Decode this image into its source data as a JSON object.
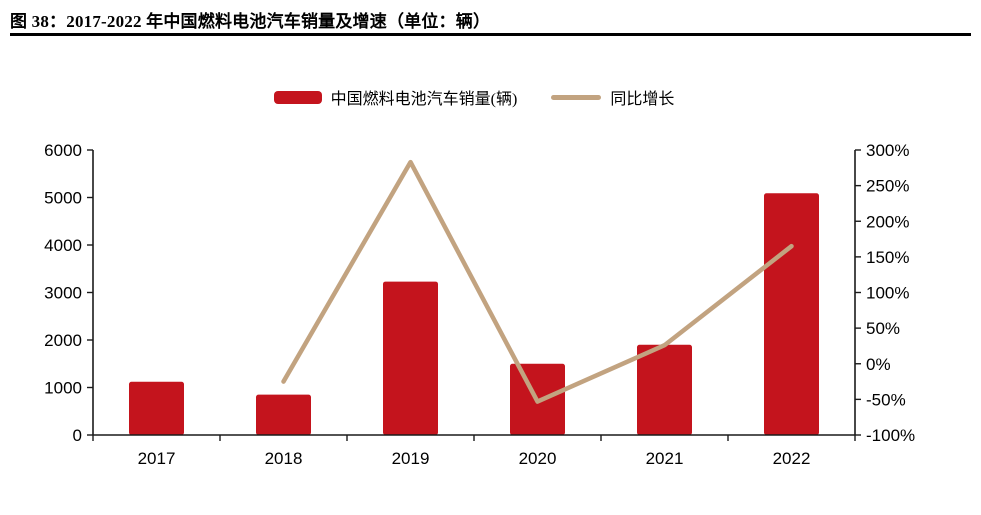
{
  "figure": {
    "caption": "图 38：2017-2022 年中国燃料电池汽车销量及增速（单位：辆）"
  },
  "legend": {
    "bar_label": "中国燃料电池汽车销量(辆)",
    "line_label": "同比增长"
  },
  "colors": {
    "bar": "#C4141D",
    "line": "#C2A380",
    "axis": "#1A1A1A",
    "text": "#000000"
  },
  "chart_data": {
    "type": "bar",
    "title": "图 38：2017-2022 年中国燃料电池汽车销量及增速（单位：辆）",
    "categories": [
      "2017",
      "2018",
      "2019",
      "2020",
      "2021",
      "2022"
    ],
    "series": [
      {
        "name": "中国燃料电池汽车销量(辆)",
        "type": "bar",
        "axis": "left",
        "values": [
          1120,
          850,
          3230,
          1500,
          1900,
          5090
        ]
      },
      {
        "name": "同比增长",
        "type": "line",
        "axis": "right",
        "values": [
          null,
          -25,
          283,
          -53,
          26,
          165
        ],
        "unit": "%"
      }
    ],
    "left_axis": {
      "min": 0,
      "max": 6000,
      "step": 1000,
      "tick_labels": [
        "0",
        "1000",
        "2000",
        "3000",
        "4000",
        "5000",
        "6000"
      ]
    },
    "right_axis": {
      "min": -100,
      "max": 300,
      "step": 50,
      "tick_labels": [
        "-100%",
        "-50%",
        "0%",
        "50%",
        "100%",
        "150%",
        "200%",
        "250%",
        "300%"
      ]
    },
    "xlabel": "",
    "ylabel": "",
    "grid": false,
    "legend_position": "top-center"
  }
}
